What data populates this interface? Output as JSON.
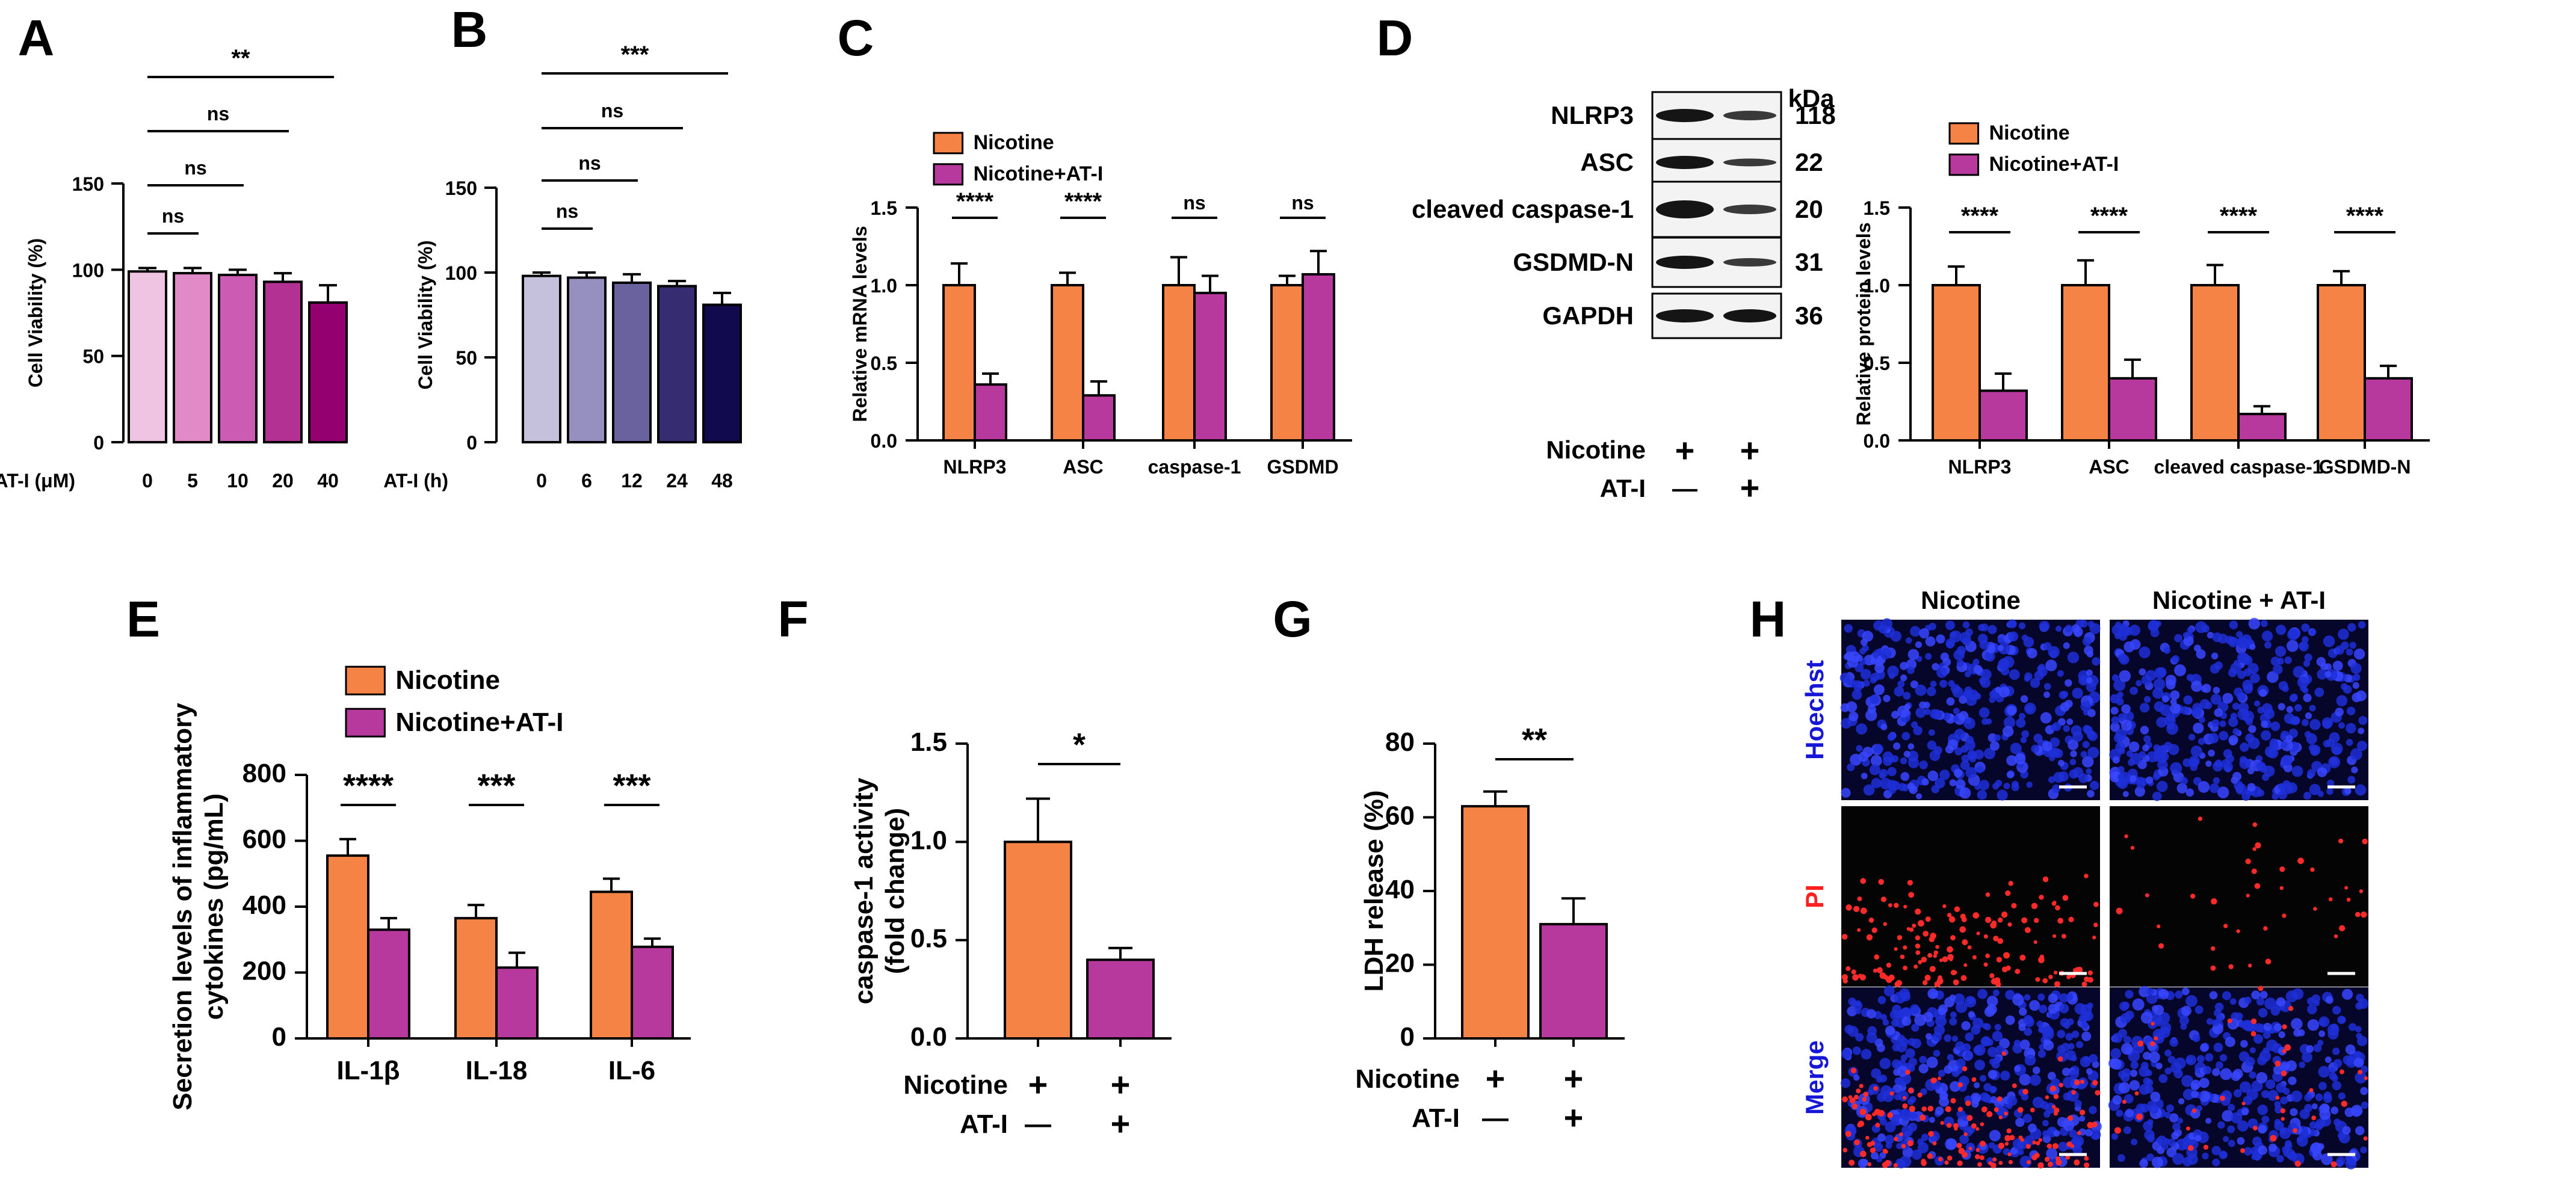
{
  "colors": {
    "nicotine": "#f58345",
    "nicotine_at": "#b7399d",
    "A": [
      "#efc4e3",
      "#e08ac8",
      "#cc5cb3",
      "#b23192",
      "#940070"
    ],
    "B": [
      "#c5c0dc",
      "#9590bf",
      "#69629e",
      "#352c72",
      "#120a4f"
    ],
    "H_blue": "#1616d6",
    "H_red": "#ff2020"
  },
  "panels": {
    "A": "A",
    "B": "B",
    "C": "C",
    "D": "D",
    "E": "E",
    "F": "F",
    "G": "G",
    "H": "H"
  },
  "chart_data": [
    {
      "id": "A",
      "type": "bar",
      "xlabel": "AT-I (μM)",
      "ylabel": "Cell Viability (%)",
      "categories": [
        "0",
        "5",
        "10",
        "20",
        "40"
      ],
      "values": [
        99,
        98,
        97,
        93,
        81
      ],
      "errors": [
        2,
        3,
        3,
        5,
        10
      ],
      "ylim": [
        0,
        150
      ],
      "yticks": [
        "0",
        "50",
        "100",
        "150"
      ],
      "significance": [
        {
          "from": 0,
          "to": 1,
          "label": "ns"
        },
        {
          "from": 0,
          "to": 2,
          "label": "ns"
        },
        {
          "from": 0,
          "to": 3,
          "label": "ns"
        },
        {
          "from": 0,
          "to": 4,
          "label": "**"
        }
      ]
    },
    {
      "id": "B",
      "type": "bar",
      "xlabel": "AT-I (h)",
      "ylabel": "Cell Viability (%)",
      "categories": [
        "0",
        "6",
        "12",
        "24",
        "48"
      ],
      "values": [
        98,
        97,
        94,
        92,
        81
      ],
      "errors": [
        2,
        3,
        5,
        3,
        7
      ],
      "ylim": [
        0,
        150
      ],
      "yticks": [
        "0",
        "50",
        "100",
        "150"
      ],
      "significance": [
        {
          "from": 0,
          "to": 1,
          "label": "ns"
        },
        {
          "from": 0,
          "to": 2,
          "label": "ns"
        },
        {
          "from": 0,
          "to": 3,
          "label": "ns"
        },
        {
          "from": 0,
          "to": 4,
          "label": "***"
        }
      ]
    },
    {
      "id": "C",
      "type": "bar",
      "ylabel": "Relative mRNA levels",
      "categories": [
        "NLRP3",
        "ASC",
        "caspase-1",
        "GSDMD"
      ],
      "series": [
        {
          "name": "Nicotine",
          "values": [
            1.0,
            1.0,
            1.0,
            1.0
          ],
          "errors": [
            0.14,
            0.08,
            0.18,
            0.06
          ]
        },
        {
          "name": "Nicotine+AT-I",
          "values": [
            0.36,
            0.29,
            0.95,
            1.07
          ],
          "errors": [
            0.07,
            0.09,
            0.11,
            0.15
          ]
        }
      ],
      "ylim": [
        0,
        1.5
      ],
      "yticks": [
        "0.0",
        "0.5",
        "1.0",
        "1.5"
      ],
      "significance": [
        "****",
        "****",
        "ns",
        "ns"
      ]
    },
    {
      "id": "D",
      "type": "bar",
      "ylabel": "Relative protein levels",
      "categories": [
        "NLRP3",
        "ASC",
        "cleaved caspase-1",
        "GSDMD-N"
      ],
      "series": [
        {
          "name": "Nicotine",
          "values": [
            1.0,
            1.0,
            1.0,
            1.0
          ],
          "errors": [
            0.12,
            0.16,
            0.13,
            0.09
          ]
        },
        {
          "name": "Nicotine+AT-I",
          "values": [
            0.32,
            0.4,
            0.17,
            0.4
          ],
          "errors": [
            0.11,
            0.12,
            0.05,
            0.08
          ]
        }
      ],
      "ylim": [
        0,
        1.5
      ],
      "yticks": [
        "0.0",
        "0.5",
        "1.0",
        "1.5"
      ],
      "significance": [
        "****",
        "****",
        "****",
        "****"
      ]
    },
    {
      "id": "E",
      "type": "bar",
      "ylabel_lines": [
        "Secretion levels of inflammatory",
        "cytokines (pg/mL)"
      ],
      "categories": [
        "IL-1β",
        "IL-18",
        "IL-6"
      ],
      "series": [
        {
          "name": "Nicotine",
          "values": [
            555,
            365,
            445
          ],
          "errors": [
            50,
            40,
            40
          ]
        },
        {
          "name": "Nicotine+AT-I",
          "values": [
            330,
            215,
            278
          ],
          "errors": [
            35,
            45,
            25
          ]
        }
      ],
      "ylim": [
        0,
        800
      ],
      "yticks": [
        "0",
        "200",
        "400",
        "600",
        "800"
      ],
      "significance": [
        "****",
        "***",
        "***"
      ]
    },
    {
      "id": "F",
      "type": "bar",
      "ylabel_lines": [
        "caspase-1 activity",
        "(fold change)"
      ],
      "values": [
        1.0,
        0.4
      ],
      "errors": [
        0.22,
        0.06
      ],
      "ylim": [
        0,
        1.5
      ],
      "yticks": [
        "0.0",
        "0.5",
        "1.0",
        "1.5"
      ],
      "significance": "*"
    },
    {
      "id": "G",
      "type": "bar",
      "ylabel": "LDH release (%)",
      "values": [
        63,
        31
      ],
      "errors": [
        4,
        7
      ],
      "ylim": [
        0,
        80
      ],
      "yticks": [
        "0",
        "20",
        "40",
        "60",
        "80"
      ],
      "significance": "**"
    }
  ],
  "treatment": {
    "nicotine_label": "Nicotine",
    "atI_label": "AT-I",
    "plus": "+",
    "minus": "—"
  },
  "western_blot": {
    "kda_label": "kDa",
    "bands": [
      {
        "name": "NLRP3",
        "kda": "118"
      },
      {
        "name": "ASC",
        "kda": "22"
      },
      {
        "name": "cleaved caspase-1",
        "kda": "20"
      },
      {
        "name": "GSDMD-N",
        "kda": "31"
      },
      {
        "name": "GAPDH",
        "kda": "36"
      }
    ]
  },
  "microscopy": {
    "columns": [
      "Nicotine",
      "Nicotine + AT-I"
    ],
    "rows": [
      "Hoechst",
      "PI",
      "Merge"
    ]
  }
}
